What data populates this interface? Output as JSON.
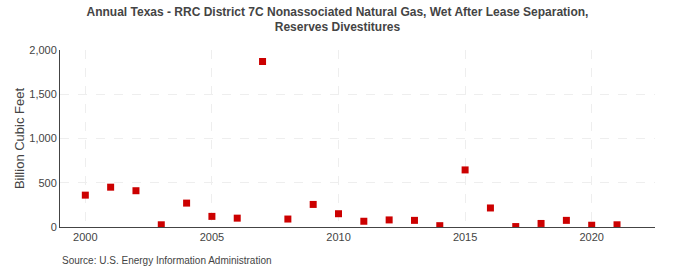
{
  "chart_data": {
    "type": "scatter",
    "title": "Annual Texas - RRC District 7C Nonassociated Natural Gas, Wet After Lease Separation,\nReserves Divestitures",
    "ylabel": "Billion Cubic Feet",
    "annotations": [
      "Source: U.S. Energy Information Administration"
    ],
    "x": [
      2000,
      2001,
      2002,
      2003,
      2004,
      2005,
      2006,
      2007,
      2008,
      2009,
      2010,
      2011,
      2012,
      2013,
      2014,
      2015,
      2016,
      2017,
      2018,
      2019,
      2020,
      2021
    ],
    "values": [
      360,
      450,
      410,
      25,
      270,
      120,
      100,
      1870,
      90,
      255,
      150,
      65,
      80,
      75,
      15,
      645,
      215,
      5,
      40,
      75,
      20,
      25
    ],
    "color": "#cc0000",
    "marker": "square",
    "xlim": [
      1999.0,
      2022.5
    ],
    "xticks": [
      2000,
      2005,
      2010,
      2015,
      2020
    ],
    "ylim": [
      0,
      2000
    ],
    "yticks": [
      0,
      500,
      {
        "value": 1000,
        "label": "1,000"
      },
      {
        "value": 1500,
        "label": "1,500"
      },
      {
        "value": 2000,
        "label": "2,000"
      }
    ],
    "grid": true
  }
}
